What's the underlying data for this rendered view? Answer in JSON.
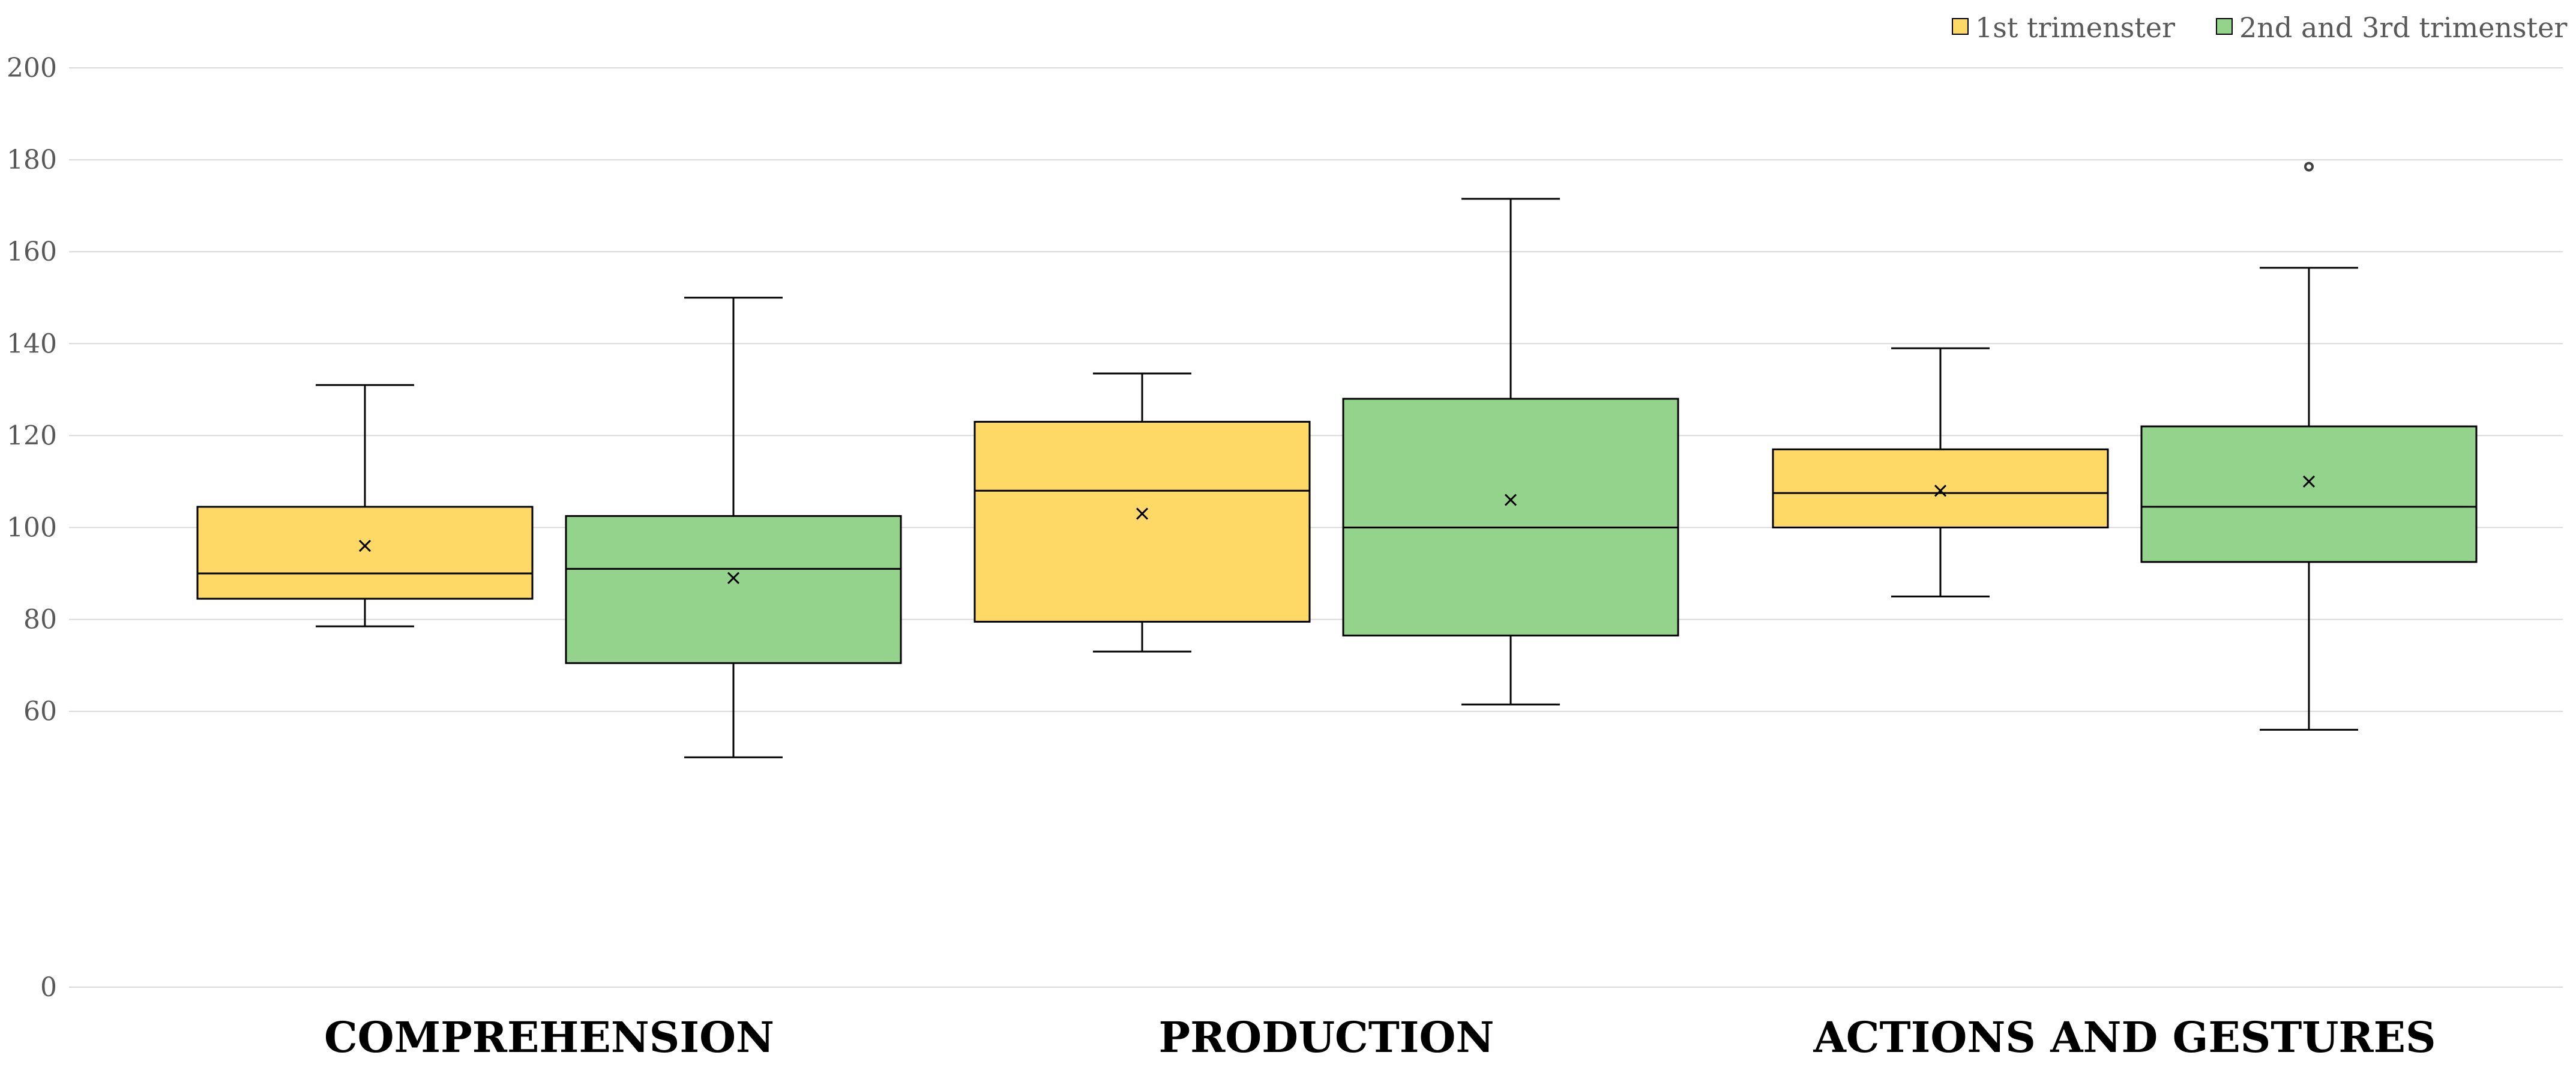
{
  "chart_data": {
    "type": "boxplot",
    "categories": [
      "COMPREHENSION",
      "PRODUCTION",
      "ACTIONS AND GESTURES"
    ],
    "ylim": [
      0,
      200
    ],
    "yticks": [
      0,
      60,
      80,
      100,
      120,
      140,
      160,
      180,
      200
    ],
    "grid": true,
    "legend_position": "top-right",
    "series": [
      {
        "name": "1st trimenster",
        "color": "#FFD966",
        "boxes": [
          {
            "min": 78.5,
            "q1": 84.5,
            "median": 90,
            "q3": 104.5,
            "max": 131,
            "mean": 96,
            "outliers": []
          },
          {
            "min": 73,
            "q1": 79.5,
            "median": 108,
            "q3": 123,
            "max": 133.5,
            "mean": 103,
            "outliers": []
          },
          {
            "min": 85,
            "q1": 100,
            "median": 107.5,
            "q3": 117,
            "max": 139,
            "mean": 108,
            "outliers": []
          }
        ]
      },
      {
        "name": "2nd and 3rd trimenster",
        "color": "#93D38B",
        "boxes": [
          {
            "min": 50,
            "q1": 70.5,
            "median": 91,
            "q3": 102.5,
            "max": 150,
            "mean": 89,
            "outliers": []
          },
          {
            "min": 61.5,
            "q1": 76.5,
            "median": 100,
            "q3": 128,
            "max": 171.5,
            "mean": 106,
            "outliers": []
          },
          {
            "min": 56,
            "q1": 92.5,
            "median": 104.5,
            "q3": 122,
            "max": 156.5,
            "mean": 110,
            "outliers": [
              178.5
            ]
          }
        ]
      }
    ]
  }
}
